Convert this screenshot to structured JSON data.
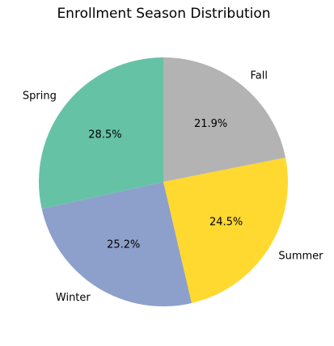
{
  "chart_data": {
    "type": "pie",
    "title": "Enrollment Season Distribution",
    "slices": [
      {
        "label": "Fall",
        "value": 21.9,
        "value_label": "21.9%",
        "color": "#b3b3b3"
      },
      {
        "label": "Summer",
        "value": 24.5,
        "value_label": "24.5%",
        "color": "#ffd92f"
      },
      {
        "label": "Winter",
        "value": 25.2,
        "value_label": "25.2%",
        "color": "#8da0cb"
      },
      {
        "label": "Spring",
        "value": 28.5,
        "value_label": "28.5%",
        "color": "#66c2a5"
      }
    ],
    "start_angle_deg": 90,
    "direction": "clockwise",
    "legend": "none"
  }
}
